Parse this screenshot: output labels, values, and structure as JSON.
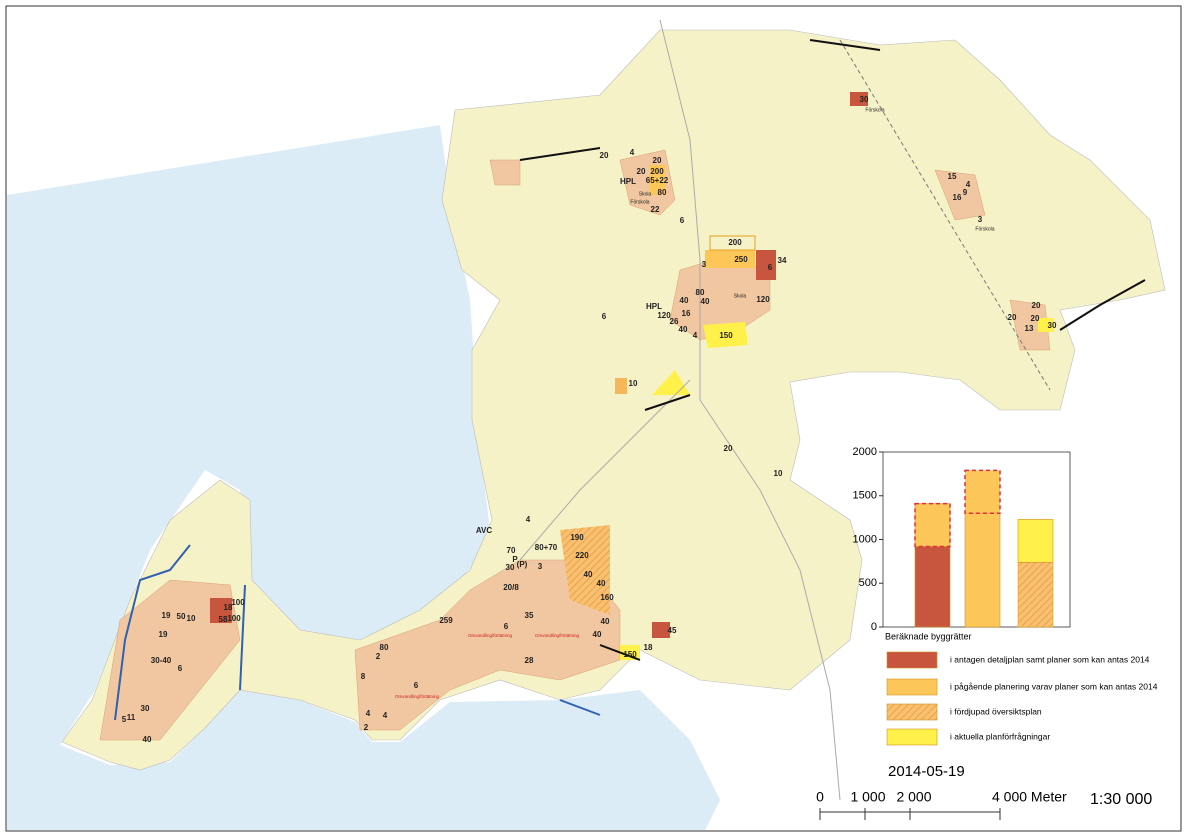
{
  "map_labels": [
    "20",
    "4",
    "20",
    "20",
    "200",
    "HPL",
    "65+22",
    "Skola",
    "80",
    "Förskola",
    "22",
    "6",
    "200",
    "250",
    "3",
    "6",
    "34",
    "80",
    "40",
    "40",
    "Skola",
    "120",
    "HPL",
    "120",
    "16",
    "26",
    "40",
    "4",
    "150",
    "6",
    "10",
    "20",
    "10",
    "30",
    "Förskola",
    "15",
    "4",
    "16",
    "9",
    "3",
    "Förskola",
    "20",
    "20",
    "20",
    "30",
    "13",
    "AVC",
    "4",
    "70",
    "P",
    "(P)",
    "80+70",
    "190",
    "30",
    "3",
    "220",
    "20/8",
    "40",
    "40",
    "160",
    "35",
    "6",
    "40",
    "40",
    "45",
    "18",
    "150",
    "28",
    "259",
    "80",
    "2",
    "8",
    "6",
    "4",
    "4",
    "2",
    "19",
    "50",
    "10",
    "19",
    "30-40",
    "6",
    "100",
    "18",
    "58",
    "100",
    "30",
    "11",
    "5",
    "40",
    "Omvandling/förtätning",
    "Omvandling/förtätning",
    "Omvandling/förtätning"
  ],
  "date": "2014-05-19",
  "scale_bar": {
    "labels": [
      "0",
      "1 000",
      "2 000",
      "4 000 Meter"
    ],
    "ratio": "1:30 000"
  },
  "chart_data": {
    "type": "bar",
    "stacked": true,
    "x_label": "Beräknade byggrätter",
    "categories": [
      null,
      null,
      null
    ],
    "ylim": [
      0,
      2000
    ],
    "yticks": [
      0,
      500,
      1000,
      1500,
      2000
    ],
    "series": [
      {
        "name": "i antagen detaljplan samt planer som kan antas 2014",
        "color": "#c8553d",
        "values": [
          920,
          null,
          null
        ]
      },
      {
        "name": "i pågående planering varav planer som kan antas 2014",
        "color": "#fdc659",
        "values": [
          490,
          1300,
          null
        ]
      },
      {
        "name": "i fördjupad översiktsplan",
        "color": "#f5b75a",
        "hatch": true,
        "values": [
          null,
          null,
          740
        ]
      },
      {
        "name": "i aktuella planförfrågningar",
        "color": "#fff04a",
        "values": [
          null,
          null,
          490
        ]
      }
    ],
    "dashed_segments": {
      "color": "#fdc659",
      "border": "#e0303a",
      "values": [
        null,
        490,
        null
      ]
    }
  }
}
